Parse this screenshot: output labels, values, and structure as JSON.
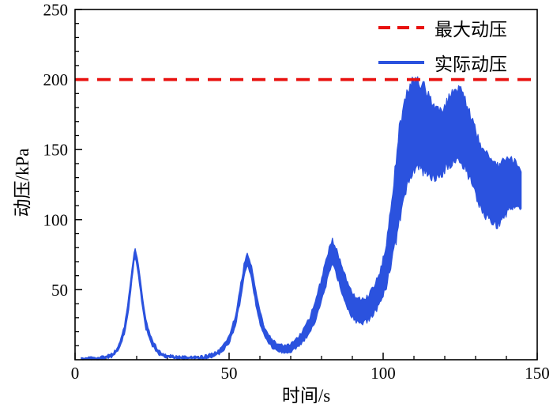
{
  "figure": {
    "background": "#ffffff"
  },
  "legend": {
    "items": [
      {
        "label": "最大动压",
        "color": "#e8100e",
        "style": "dashed"
      },
      {
        "label": "实际动压",
        "color": "#2b52de",
        "style": "solid"
      }
    ]
  },
  "chart_data": {
    "type": "line",
    "title": "",
    "xlabel": "时间/s",
    "ylabel": "动压/kPa",
    "xlim": [
      0,
      150
    ],
    "ylim": [
      0,
      250
    ],
    "xticks": [
      0,
      50,
      100,
      150
    ],
    "yticks": [
      50,
      100,
      150,
      200,
      250
    ],
    "minor_tick_step": 10,
    "grid": false,
    "legend_position": "upper-right",
    "series": [
      {
        "name": "最大动压",
        "type": "hline",
        "y": 200,
        "color": "#e8100e",
        "linestyle": "dashed"
      },
      {
        "name": "实际动压",
        "type": "noisy-band",
        "color": "#2b52de",
        "points_t_low_high": [
          [
            2,
            0,
            1
          ],
          [
            6,
            0,
            1.5
          ],
          [
            9,
            0.5,
            2
          ],
          [
            12,
            2,
            4
          ],
          [
            14,
            6,
            9
          ],
          [
            16,
            18,
            24
          ],
          [
            17.5,
            38,
            46
          ],
          [
            18.7,
            62,
            70
          ],
          [
            19.4,
            74,
            79
          ],
          [
            20.2,
            66,
            73
          ],
          [
            21.5,
            44,
            52
          ],
          [
            23,
            22,
            28
          ],
          [
            25,
            10,
            14
          ],
          [
            27,
            4,
            7
          ],
          [
            29,
            2,
            4
          ],
          [
            32,
            1,
            2.5
          ],
          [
            36,
            0.5,
            2
          ],
          [
            40,
            0.5,
            2
          ],
          [
            43,
            1,
            3
          ],
          [
            46,
            3,
            6
          ],
          [
            48,
            6,
            10
          ],
          [
            50,
            12,
            17
          ],
          [
            52,
            24,
            31
          ],
          [
            53.5,
            40,
            50
          ],
          [
            55,
            60,
            70
          ],
          [
            56,
            68,
            76
          ],
          [
            57.2,
            58,
            68
          ],
          [
            58.5,
            42,
            52
          ],
          [
            60,
            26,
            34
          ],
          [
            62,
            14,
            20
          ],
          [
            64,
            9,
            14
          ],
          [
            66,
            6,
            11
          ],
          [
            68,
            5,
            10
          ],
          [
            70,
            6,
            11
          ],
          [
            72,
            9,
            15
          ],
          [
            74,
            13,
            21
          ],
          [
            76,
            19,
            29
          ],
          [
            78,
            28,
            41
          ],
          [
            80,
            42,
            58
          ],
          [
            82,
            58,
            76
          ],
          [
            83.5,
            68,
            86
          ],
          [
            85,
            60,
            78
          ],
          [
            87,
            46,
            64
          ],
          [
            89,
            34,
            52
          ],
          [
            91,
            28,
            45
          ],
          [
            93,
            26,
            42
          ],
          [
            95,
            28,
            45
          ],
          [
            97,
            33,
            52
          ],
          [
            99,
            40,
            62
          ],
          [
            101,
            52,
            82
          ],
          [
            103,
            72,
            118
          ],
          [
            105,
            95,
            160
          ],
          [
            107,
            118,
            188
          ],
          [
            109,
            132,
            199
          ],
          [
            111,
            138,
            200
          ],
          [
            113,
            135,
            196
          ],
          [
            115,
            132,
            188
          ],
          [
            117,
            130,
            178
          ],
          [
            119,
            133,
            177
          ],
          [
            121,
            138,
            185
          ],
          [
            123,
            142,
            192
          ],
          [
            125,
            143,
            193
          ],
          [
            127,
            136,
            184
          ],
          [
            129,
            124,
            170
          ],
          [
            131,
            112,
            156
          ],
          [
            133,
            104,
            148
          ],
          [
            135,
            98,
            141
          ],
          [
            137,
            96,
            138
          ],
          [
            139,
            102,
            141
          ],
          [
            141,
            107,
            143
          ],
          [
            143,
            108,
            141
          ],
          [
            145,
            107,
            134
          ]
        ]
      }
    ]
  }
}
